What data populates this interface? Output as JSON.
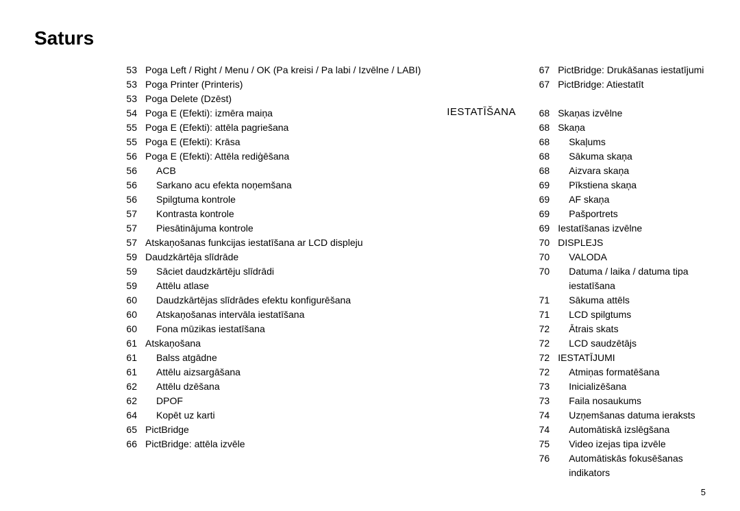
{
  "title": "Saturs",
  "page_number": "5",
  "section_label": "IESTATĪŠANA",
  "col1": [
    {
      "p": "53",
      "t": "Poga Left / Right / Menu / OK (Pa kreisi / Pa labi / Izvēlne / LABI)",
      "i": 0
    },
    {
      "p": "53",
      "t": "Poga Printer (Printeris)",
      "i": 0
    },
    {
      "p": "53",
      "t": "Poga Delete (Dzēst)",
      "i": 0
    },
    {
      "p": "54",
      "t": "Poga E (Efekti): izmēra maiņa",
      "i": 0
    },
    {
      "p": "55",
      "t": "Poga E (Efekti): attēla pagriešana",
      "i": 0
    },
    {
      "p": "55",
      "t": "Poga E (Efekti): Krāsa",
      "i": 0
    },
    {
      "p": "56",
      "t": "Poga E (Efekti): Attēla rediģēšana",
      "i": 0
    },
    {
      "p": "56",
      "t": "ACB",
      "i": 1
    },
    {
      "p": "56",
      "t": "Sarkano acu efekta noņemšana",
      "i": 1
    },
    {
      "p": "56",
      "t": "Spilgtuma kontrole",
      "i": 1
    },
    {
      "p": "57",
      "t": "Kontrasta kontrole",
      "i": 1
    },
    {
      "p": "57",
      "t": "Piesātinājuma kontrole",
      "i": 1
    },
    {
      "p": "57",
      "t": "Atskaņošanas funkcijas iestatīšana ar LCD displeju",
      "i": 0
    },
    {
      "p": "59",
      "t": "Daudzkārtēja slīdrāde",
      "i": 0
    },
    {
      "p": "59",
      "t": "Sāciet daudzkārtēju slīdrādi",
      "i": 1
    },
    {
      "p": "59",
      "t": "Attēlu atlase",
      "i": 1
    },
    {
      "p": "60",
      "t": "Daudzkārtējas slīdrādes efektu konfigurēšana",
      "i": 1
    },
    {
      "p": "60",
      "t": "Atskaņošanas intervāla iestatīšana",
      "i": 1
    },
    {
      "p": "60",
      "t": "Fona mūzikas iestatīšana",
      "i": 1
    },
    {
      "p": "61",
      "t": "Atskaņošana",
      "i": 0
    },
    {
      "p": "61",
      "t": "Balss atgādne",
      "i": 1
    },
    {
      "p": "61",
      "t": "Attēlu aizsargāšana",
      "i": 1
    },
    {
      "p": "62",
      "t": "Attēlu dzēšana",
      "i": 1
    },
    {
      "p": "62",
      "t": "DPOF",
      "i": 1
    },
    {
      "p": "64",
      "t": "Kopēt uz karti",
      "i": 1
    },
    {
      "p": "65",
      "t": "PictBridge",
      "i": 0
    },
    {
      "p": "66",
      "t": "PictBridge: attēla izvēle",
      "i": 0
    }
  ],
  "col2": [
    {
      "p": "67",
      "t": "PictBridge: Drukāšanas iestatījumi",
      "i": 0
    },
    {
      "p": "67",
      "t": "PictBridge: Atiestatīt",
      "i": 0
    },
    {
      "spacer": true
    },
    {
      "p": "68",
      "t": "Skaņas izvēlne",
      "i": 0
    },
    {
      "p": "68",
      "t": "Skaņa",
      "i": 0
    },
    {
      "p": "68",
      "t": "Skaļums",
      "i": 1
    },
    {
      "p": "68",
      "t": "Sākuma skaņa",
      "i": 1
    },
    {
      "p": "68",
      "t": "Aizvara skaņa",
      "i": 1
    },
    {
      "p": "69",
      "t": "Pīkstiena skaņa",
      "i": 1
    },
    {
      "p": "69",
      "t": "AF skaņa",
      "i": 1
    },
    {
      "p": "69",
      "t": "Pašportrets",
      "i": 1
    },
    {
      "p": "69",
      "t": "Iestatīšanas izvēlne",
      "i": 0
    },
    {
      "p": "70",
      "t": "DISPLEJS",
      "i": 0
    },
    {
      "p": "70",
      "t": "VALODA",
      "i": 1
    },
    {
      "p": "70",
      "t": "Datuma / laika / datuma tipa iestatīšana",
      "i": 1
    },
    {
      "p": "71",
      "t": "Sākuma attēls",
      "i": 1
    },
    {
      "p": "71",
      "t": "LCD spilgtums",
      "i": 1
    },
    {
      "p": "72",
      "t": "Ātrais skats",
      "i": 1
    },
    {
      "p": "72",
      "t": "LCD saudzētājs",
      "i": 1
    },
    {
      "p": "72",
      "t": "IESTATĪJUMI",
      "i": 0
    },
    {
      "p": "72",
      "t": "Atmiņas formatēšana",
      "i": 1
    },
    {
      "p": "73",
      "t": "Inicializēšana",
      "i": 1
    },
    {
      "p": "73",
      "t": "Faila nosaukums",
      "i": 1
    },
    {
      "p": "74",
      "t": "Uzņemšanas datuma ieraksts",
      "i": 1
    },
    {
      "p": "74",
      "t": "Automātiskā izslēgšana",
      "i": 1
    },
    {
      "p": "75",
      "t": "Video izejas tipa izvēle",
      "i": 1
    },
    {
      "p": "76",
      "t": "Automātiskās fokusēšanas indikators",
      "i": 1
    }
  ]
}
